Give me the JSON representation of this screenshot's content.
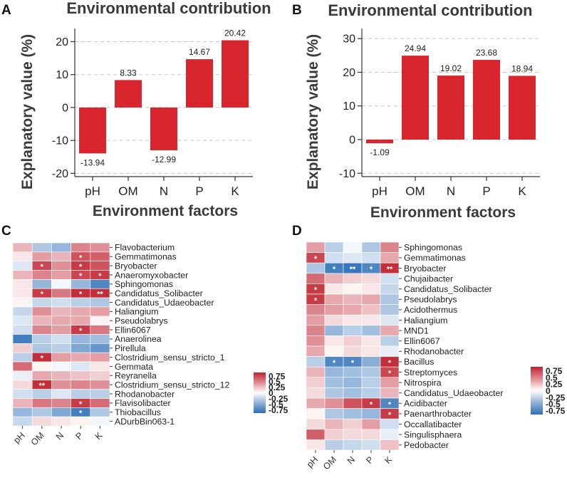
{
  "panels": {
    "A": "A",
    "B": "B",
    "C": "C",
    "D": "D"
  },
  "chart_data": [
    {
      "id": "A",
      "type": "bar",
      "title": "Environmental contribution",
      "xlabel": "Environment factors",
      "ylabel": "Explanatory value  (%)",
      "categories": [
        "pH",
        "OM",
        "N",
        "P",
        "K"
      ],
      "values": [
        -13.94,
        8.33,
        -12.99,
        14.67,
        20.42
      ],
      "value_labels": [
        "-13.94",
        "8.33",
        "-12.99",
        "14.67",
        "20.42"
      ],
      "yticks": [
        -20,
        -10,
        0,
        10,
        20
      ],
      "ytick_labels": [
        "-20",
        "-10",
        "0",
        "10",
        "20"
      ],
      "ylim": [
        -21,
        24
      ],
      "grid": true,
      "color": "#d9262e"
    },
    {
      "id": "B",
      "type": "bar",
      "title": "Environmental contribution",
      "xlabel": "Environment factors",
      "ylabel": "Explanatory value  (%)",
      "categories": [
        "pH",
        "OM",
        "N",
        "P",
        "K"
      ],
      "values": [
        -1.09,
        24.94,
        19.02,
        23.68,
        18.94
      ],
      "value_labels": [
        "-1.09",
        "24.94",
        "19.02",
        "23.68",
        "18.94"
      ],
      "yticks": [
        -10,
        0,
        10,
        20,
        30
      ],
      "ytick_labels": [
        "-10",
        "0",
        "10",
        "20",
        "30"
      ],
      "ylim": [
        -11,
        33
      ],
      "grid": true,
      "color": "#d9262e"
    },
    {
      "id": "C",
      "type": "heatmap",
      "columns": [
        "pH",
        "OM",
        "N",
        "P",
        "K"
      ],
      "rows": [
        "Flavobacterium",
        "Gemmatimonas",
        "Bryobacter",
        "Anaeromyxobacter",
        "Sphingomonas",
        "Candidatus_Solibacter",
        "Candidatus_Udaeobacter",
        "Haliangium",
        "Pseudolabrys",
        "Ellin6067",
        "Anaerolinea",
        "Pirellula",
        "Clostridium_sensu_stricto_1",
        "Gemmata",
        "Reyranella",
        "Clostridium_sensu_stricto_12",
        "Rhodanobacter",
        "Flavisolibacter",
        "Thiobacillus",
        "ADurbBin063-1"
      ],
      "values": [
        [
          0.3,
          -0.35,
          -0.45,
          0.5,
          0.45
        ],
        [
          0.1,
          0.4,
          0.3,
          0.7,
          0.65
        ],
        [
          -0.15,
          0.75,
          0.45,
          0.8,
          0.7
        ],
        [
          0.3,
          0.5,
          0.4,
          0.75,
          0.8
        ],
        [
          0.1,
          -0.45,
          -0.05,
          -0.45,
          -0.75
        ],
        [
          0.1,
          0.8,
          0.55,
          0.85,
          0.85
        ],
        [
          0.05,
          -0.25,
          -0.2,
          -0.3,
          -0.35
        ],
        [
          -0.25,
          0.45,
          0.3,
          0.35,
          0.4
        ],
        [
          -0.15,
          0.3,
          0.35,
          0.35,
          0.05
        ],
        [
          -0.2,
          0.5,
          0.4,
          0.8,
          0.55
        ],
        [
          -0.8,
          -0.3,
          -0.2,
          -0.45,
          -0.4
        ],
        [
          0.2,
          -0.35,
          -0.3,
          -0.55,
          -0.65
        ],
        [
          -0.3,
          0.85,
          0.4,
          0.35,
          0.4
        ],
        [
          0.6,
          0.05,
          -0.05,
          -0.15,
          0.1
        ],
        [
          -0.1,
          0.35,
          0.3,
          0.25,
          0.2
        ],
        [
          0.15,
          0.85,
          0.45,
          0.5,
          0.45
        ],
        [
          -0.2,
          -0.3,
          -0.15,
          -0.3,
          -0.3
        ],
        [
          0.3,
          0.55,
          0.5,
          0.8,
          0.6
        ],
        [
          -0.45,
          -0.35,
          -0.55,
          -0.8,
          -0.35
        ],
        [
          -0.25,
          0.15,
          0.1,
          0.05,
          -0.05
        ]
      ],
      "significance": [
        [
          "",
          "",
          "",
          "",
          ""
        ],
        [
          "",
          "",
          "",
          "*",
          ""
        ],
        [
          "",
          "*",
          "",
          "*",
          ""
        ],
        [
          "",
          "",
          "",
          "*",
          "*"
        ],
        [
          "",
          "",
          "",
          "",
          ""
        ],
        [
          "",
          "*",
          "",
          "*",
          "**"
        ],
        [
          "",
          "",
          "",
          "",
          ""
        ],
        [
          "",
          "",
          "",
          "",
          ""
        ],
        [
          "",
          "",
          "",
          "",
          ""
        ],
        [
          "",
          "",
          "",
          "*",
          ""
        ],
        [
          "",
          "",
          "",
          "",
          ""
        ],
        [
          "",
          "",
          "",
          "",
          ""
        ],
        [
          "",
          "*",
          "",
          "",
          ""
        ],
        [
          "",
          "",
          "",
          "",
          ""
        ],
        [
          "",
          "",
          "",
          "",
          ""
        ],
        [
          "",
          "**",
          "",
          "",
          ""
        ],
        [
          "",
          "",
          "",
          "",
          ""
        ],
        [
          "",
          "",
          "",
          "*",
          ""
        ],
        [
          "",
          "",
          "",
          "*",
          ""
        ],
        [
          "",
          "",
          "",
          "",
          ""
        ]
      ],
      "legend_ticks": [
        "0.75",
        "0.5",
        "0.25",
        "0",
        "-0.25",
        "-0.5",
        "-0.75"
      ],
      "color_range": [
        -0.9,
        0.9
      ]
    },
    {
      "id": "D",
      "type": "heatmap",
      "columns": [
        "pH",
        "OM",
        "N",
        "P",
        "K"
      ],
      "rows": [
        "Sphingomonas",
        "Gemmatimonas",
        "Bryobacter",
        "Chujaibacter",
        "Candidatus_Solibacter",
        "Pseudolabrys",
        "Acidothermus",
        "Haliangium",
        "MND1",
        "Ellin6067",
        "Rhodanobacter",
        "Bacillus",
        "Streptomyces",
        "Nitrospira",
        "Candidatus_Udaeobacter",
        "Acidibacter",
        "Paenarthrobacter",
        "Occallatibacter",
        "Singulisphaera",
        "Pedobacter"
      ],
      "values": [
        [
          0.4,
          -0.3,
          -0.05,
          -0.35,
          0.5
        ],
        [
          0.75,
          -0.2,
          -0.15,
          -0.2,
          0.35
        ],
        [
          -0.35,
          -0.8,
          -0.85,
          -0.75,
          0.85
        ],
        [
          0.6,
          0.3,
          0.2,
          0.15,
          -0.2
        ],
        [
          0.8,
          0.1,
          0.05,
          0.1,
          -0.25
        ],
        [
          0.8,
          0.35,
          0.3,
          0.35,
          -0.35
        ],
        [
          0.5,
          0.4,
          0.35,
          0.25,
          -0.35
        ],
        [
          0.4,
          0.15,
          0.1,
          0.1,
          -0.15
        ],
        [
          0.5,
          -0.45,
          -0.3,
          -0.4,
          0.35
        ],
        [
          0.45,
          0.1,
          0.2,
          0.1,
          -0.3
        ],
        [
          0.35,
          0.05,
          0.15,
          0.1,
          -0.1
        ],
        [
          -0.3,
          -0.75,
          -0.75,
          -0.5,
          0.85
        ],
        [
          0.3,
          -0.45,
          -0.4,
          -0.35,
          0.75
        ],
        [
          0.2,
          -0.4,
          -0.45,
          -0.3,
          0.4
        ],
        [
          0.15,
          -0.35,
          -0.4,
          -0.3,
          0.3
        ],
        [
          0.35,
          0.45,
          0.7,
          0.8,
          -0.75
        ],
        [
          0.05,
          -0.35,
          -0.4,
          -0.45,
          0.8
        ],
        [
          0.15,
          0.3,
          0.2,
          0.4,
          -0.2
        ],
        [
          0.65,
          0.2,
          0.15,
          0.15,
          -0.1
        ],
        [
          0.1,
          -0.3,
          -0.25,
          -0.2,
          0.25
        ]
      ],
      "significance": [
        [
          "",
          "",
          "",
          "",
          ""
        ],
        [
          "*",
          "",
          "",
          "",
          ""
        ],
        [
          "",
          "*",
          "**",
          "*",
          "**"
        ],
        [
          "",
          "",
          "",
          "",
          ""
        ],
        [
          "*",
          "",
          "",
          "",
          ""
        ],
        [
          "*",
          "",
          "",
          "",
          ""
        ],
        [
          "",
          "",
          "",
          "",
          ""
        ],
        [
          "",
          "",
          "",
          "",
          ""
        ],
        [
          "",
          "",
          "",
          "",
          ""
        ],
        [
          "",
          "",
          "",
          "",
          ""
        ],
        [
          "",
          "",
          "",
          "",
          ""
        ],
        [
          "",
          "*",
          "*",
          "",
          "*"
        ],
        [
          "",
          "",
          "",
          "",
          "*"
        ],
        [
          "",
          "",
          "",
          "",
          ""
        ],
        [
          "",
          "",
          "",
          "",
          ""
        ],
        [
          "",
          "",
          "",
          "*",
          "*"
        ],
        [
          "",
          "",
          "",
          "",
          "*"
        ],
        [
          "",
          "",
          "",
          "",
          ""
        ],
        [
          "",
          "",
          "",
          "",
          ""
        ],
        [
          "",
          "",
          "",
          "",
          ""
        ]
      ],
      "legend_ticks": [
        "0.75",
        "0.5",
        "0.25",
        "0",
        "-0.25",
        "-0.5",
        "-0.75"
      ],
      "color_range": [
        -0.9,
        0.9
      ]
    }
  ]
}
